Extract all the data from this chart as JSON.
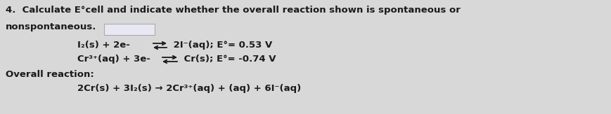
{
  "background_color": "#d8d8d8",
  "text_color": "#1a1a1a",
  "figsize": [
    8.69,
    1.63
  ],
  "dpi": 100,
  "line1": "4.  Calculate E°cell and indicate whether the overall reaction shown is spontaneous or",
  "line2": "nonspontaneous.",
  "line3_left": "I₂(s) + 2e- ",
  "line3_right": " 2I⁻(aq); E°= 0.53 V",
  "line4_left": "Cr³⁺(aq) + 3e- ",
  "line4_right": " Cr(s); E°= -0.74 V",
  "line5": "Overall reaction:",
  "line6": "2Cr(s) + 3I₂(s) → 2Cr³⁺(aq) + (aq) + 6I⁻(aq)",
  "fontsize": 9.5,
  "fontfamily": "DejaVu Sans",
  "answer_box": {
    "facecolor": "#e8e8f5",
    "edgecolor": "#aaaaaa",
    "linewidth": 0.8
  }
}
